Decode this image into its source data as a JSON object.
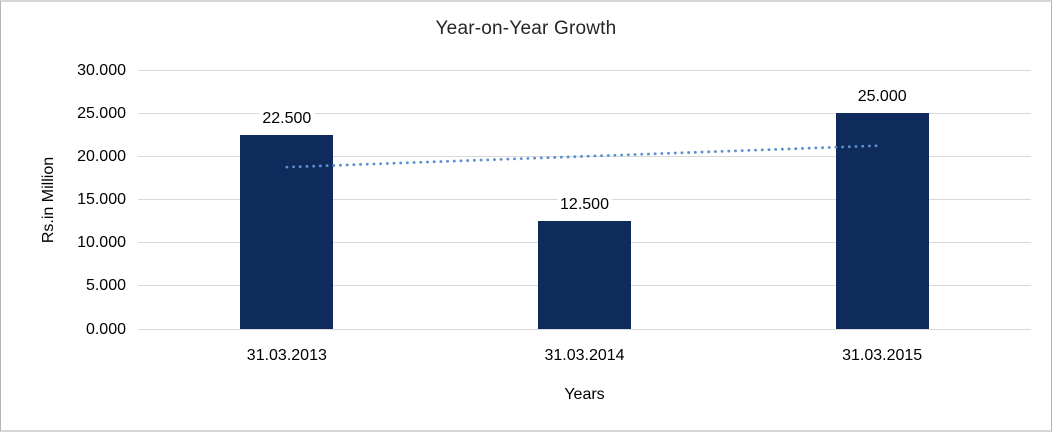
{
  "chart_data": {
    "type": "bar",
    "title": "Year-on-Year Growth",
    "xlabel": "Years",
    "ylabel": "Rs.in Million",
    "categories": [
      "31.03.2013",
      "31.03.2014",
      "31.03.2015"
    ],
    "values": [
      22.5,
      12.5,
      25.0
    ],
    "value_labels": [
      "22.500",
      "12.500",
      "25.000"
    ],
    "ylim": [
      0,
      30
    ],
    "ytick_step": 5,
    "ytick_labels": [
      "0.000",
      "5.000",
      "10.000",
      "15.000",
      "20.000",
      "25.000",
      "30.000"
    ],
    "grid": true,
    "legend": "none",
    "bar_color": "#0f2b5b",
    "gridline_color": "#d9d9d9",
    "trendline": {
      "type": "linear",
      "style": "dotted",
      "color": "#5b8fd0",
      "start_value": 18.75,
      "end_value": 21.25
    }
  }
}
